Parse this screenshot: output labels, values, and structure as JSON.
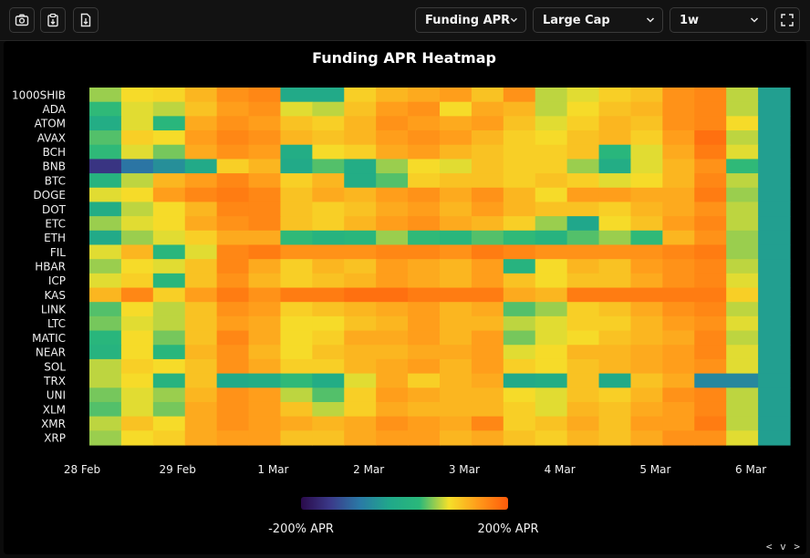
{
  "toolbar": {
    "buttons": [
      {
        "icon": "camera-icon"
      },
      {
        "icon": "clipboard-icon"
      },
      {
        "icon": "file-download-icon"
      }
    ],
    "metric_select": {
      "value": "Funding APR"
    },
    "group_select": {
      "value": "Large Cap"
    },
    "period_select": {
      "value": "1w"
    },
    "fullscreen_icon": "fullscreen-icon"
  },
  "corner_nav": "< v >",
  "chart_data": {
    "type": "heatmap",
    "title": "Funding APR Heatmap",
    "rows": [
      "1000SHIB",
      "ADA",
      "ATOM",
      "AVAX",
      "BCH",
      "BNB",
      "BTC",
      "DOGE",
      "DOT",
      "ETC",
      "ETH",
      "FIL",
      "HBAR",
      "ICP",
      "KAS",
      "LINK",
      "LTC",
      "MATIC",
      "NEAR",
      "SOL",
      "TRX",
      "UNI",
      "XLM",
      "XMR",
      "XRP"
    ],
    "x_ticks": [
      "28 Feb",
      "29 Feb",
      "1 Mar",
      "2 Mar",
      "3 Mar",
      "4 Mar",
      "5 Mar",
      "6 Mar"
    ],
    "columns_per_day": 3,
    "color_range": [
      -200,
      200
    ],
    "colorbar_labels": {
      "min": "-200% APR",
      "max": "200% APR"
    },
    "colorscale": [
      "#2a0a4a",
      "#3b3a8a",
      "#2a7aa6",
      "#20a88a",
      "#2ab87a",
      "#f5e02a",
      "#ff9a1a",
      "#ff5a0a"
    ],
    "values": [
      [
        60,
        90,
        95,
        120,
        150,
        160,
        -20,
        -20,
        100,
        120,
        130,
        140,
        110,
        150,
        70,
        80,
        100,
        110,
        150,
        160,
        70,
        -40
      ],
      [
        30,
        80,
        70,
        110,
        140,
        150,
        80,
        70,
        110,
        140,
        150,
        90,
        130,
        120,
        70,
        90,
        110,
        120,
        150,
        160,
        70,
        -40
      ],
      [
        -10,
        80,
        20,
        130,
        150,
        140,
        110,
        100,
        120,
        150,
        140,
        130,
        140,
        110,
        80,
        100,
        120,
        110,
        150,
        160,
        90,
        -40
      ],
      [
        40,
        100,
        90,
        140,
        160,
        150,
        120,
        110,
        120,
        140,
        150,
        140,
        120,
        100,
        90,
        110,
        120,
        100,
        140,
        180,
        70,
        -40
      ],
      [
        30,
        80,
        50,
        130,
        150,
        140,
        -10,
        90,
        100,
        130,
        140,
        120,
        110,
        100,
        100,
        110,
        20,
        80,
        130,
        170,
        80,
        -40
      ],
      [
        -150,
        -90,
        -60,
        -20,
        100,
        120,
        -20,
        40,
        -10,
        60,
        90,
        80,
        110,
        100,
        100,
        60,
        -10,
        80,
        120,
        150,
        30,
        -40
      ],
      [
        10,
        70,
        120,
        140,
        160,
        140,
        100,
        120,
        -10,
        40,
        100,
        110,
        110,
        100,
        110,
        100,
        80,
        90,
        120,
        160,
        70,
        -40
      ],
      [
        80,
        90,
        140,
        160,
        170,
        160,
        110,
        130,
        120,
        140,
        150,
        130,
        150,
        120,
        90,
        140,
        140,
        130,
        130,
        170,
        60,
        -40
      ],
      [
        -10,
        70,
        90,
        120,
        160,
        160,
        110,
        100,
        110,
        130,
        140,
        120,
        140,
        120,
        110,
        110,
        100,
        120,
        130,
        150,
        70,
        -40
      ],
      [
        60,
        80,
        90,
        130,
        150,
        160,
        110,
        100,
        120,
        140,
        150,
        130,
        120,
        100,
        60,
        -30,
        90,
        110,
        140,
        160,
        70,
        -40
      ],
      [
        -20,
        60,
        80,
        100,
        130,
        130,
        30,
        10,
        20,
        60,
        30,
        20,
        40,
        30,
        10,
        40,
        60,
        30,
        120,
        150,
        60,
        -40
      ],
      [
        80,
        120,
        20,
        80,
        160,
        170,
        150,
        150,
        150,
        160,
        160,
        150,
        170,
        160,
        150,
        150,
        150,
        150,
        160,
        170,
        60,
        -40
      ],
      [
        60,
        90,
        80,
        110,
        160,
        130,
        100,
        120,
        110,
        140,
        130,
        120,
        140,
        10,
        90,
        120,
        110,
        140,
        150,
        160,
        70,
        -40
      ],
      [
        80,
        100,
        20,
        110,
        150,
        120,
        100,
        110,
        120,
        140,
        130,
        120,
        140,
        110,
        90,
        110,
        110,
        130,
        150,
        160,
        80,
        -40
      ],
      [
        120,
        160,
        100,
        140,
        170,
        150,
        170,
        170,
        180,
        180,
        170,
        170,
        170,
        130,
        120,
        170,
        170,
        170,
        170,
        170,
        100,
        -40
      ],
      [
        40,
        90,
        70,
        110,
        150,
        140,
        100,
        110,
        120,
        130,
        140,
        120,
        130,
        40,
        60,
        100,
        110,
        130,
        150,
        160,
        70,
        -40
      ],
      [
        50,
        80,
        70,
        110,
        140,
        130,
        90,
        90,
        110,
        120,
        140,
        120,
        120,
        70,
        80,
        100,
        100,
        120,
        140,
        150,
        80,
        -40
      ],
      [
        20,
        90,
        50,
        110,
        160,
        130,
        90,
        100,
        130,
        130,
        140,
        120,
        140,
        50,
        80,
        90,
        110,
        120,
        130,
        160,
        70,
        -40
      ],
      [
        10,
        90,
        20,
        120,
        150,
        120,
        90,
        110,
        120,
        120,
        130,
        130,
        140,
        80,
        90,
        120,
        120,
        130,
        140,
        160,
        80,
        -40
      ],
      [
        70,
        100,
        90,
        110,
        150,
        130,
        100,
        100,
        120,
        130,
        140,
        120,
        140,
        100,
        90,
        110,
        120,
        130,
        140,
        150,
        80,
        -40
      ],
      [
        70,
        90,
        10,
        110,
        -20,
        -10,
        30,
        -10,
        80,
        130,
        100,
        120,
        130,
        -20,
        -10,
        110,
        -20,
        110,
        130,
        -70,
        -70,
        -40
      ],
      [
        50,
        80,
        60,
        120,
        150,
        140,
        70,
        40,
        100,
        140,
        130,
        120,
        120,
        90,
        80,
        110,
        100,
        120,
        150,
        160,
        70,
        -40
      ],
      [
        40,
        80,
        50,
        130,
        150,
        140,
        110,
        70,
        100,
        130,
        120,
        120,
        120,
        100,
        80,
        120,
        110,
        130,
        140,
        160,
        70,
        -40
      ],
      [
        70,
        110,
        90,
        130,
        150,
        140,
        130,
        120,
        130,
        150,
        140,
        130,
        160,
        100,
        110,
        130,
        110,
        140,
        140,
        170,
        70,
        -40
      ],
      [
        60,
        90,
        100,
        130,
        140,
        140,
        110,
        110,
        130,
        140,
        140,
        120,
        130,
        110,
        100,
        120,
        110,
        130,
        150,
        150,
        80,
        -40
      ]
    ]
  }
}
